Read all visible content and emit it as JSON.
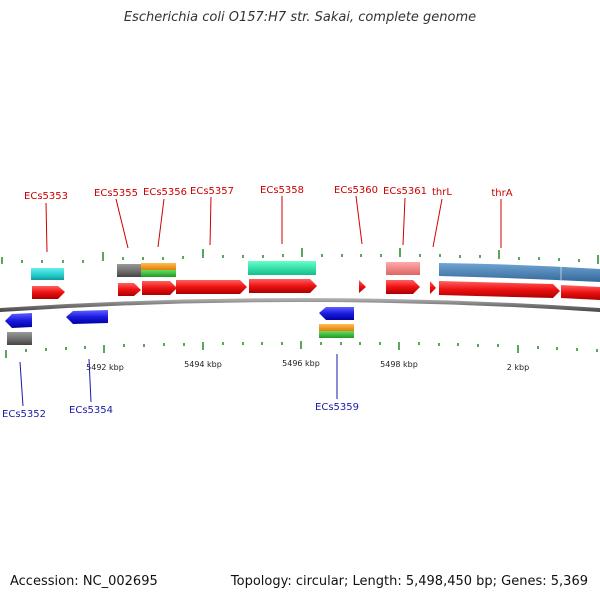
{
  "title": "Escherichia coli O157:H7 str. Sakai, complete genome",
  "footer": {
    "accession": "Accession: NC_002695",
    "topology": "Topology: circular; Length: 5,498,450 bp; Genes: 5,369"
  },
  "axis_labels": [
    "5492 kbp",
    "5494 kbp",
    "5496 kbp",
    "5498 kbp",
    "2 kbp"
  ],
  "top_genes": [
    "ECs5353",
    "ECs5355",
    "ECs5356",
    "ECs5357",
    "ECs5358",
    "ECs5360",
    "ECs5361",
    "thrL",
    "thrA"
  ],
  "bottom_genes": [
    "ECs5352",
    "ECs5354",
    "ECs5359"
  ],
  "colors": {
    "gene": "#ee1111",
    "reverse_gene": "#1a1ae0",
    "cyan": "#22cccc",
    "gray": "#6a6a6a",
    "orange": "#f29a1a",
    "green": "#33bb33",
    "teal": "#22e0a0",
    "pink": "#ee8888",
    "steel": "#4682b4",
    "tick": "#228822",
    "backbone": "#808080"
  }
}
